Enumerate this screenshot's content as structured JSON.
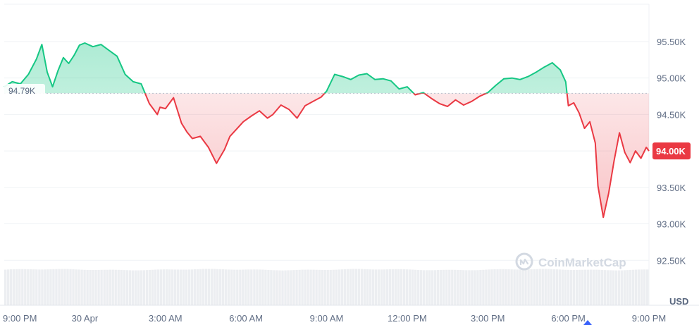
{
  "chart_data": {
    "type": "area",
    "baseline": 94790,
    "baseline_label": "94.79K",
    "current_label": "94.00K",
    "unit": "USD",
    "ylim": [
      92000,
      96000
    ],
    "y_ticks": [
      {
        "value": 92500,
        "label": "92.50K"
      },
      {
        "value": 93000,
        "label": "93.00K"
      },
      {
        "value": 93500,
        "label": "93.50K"
      },
      {
        "value": 94000,
        "label": "94.00K"
      },
      {
        "value": 94500,
        "label": "94.50K"
      },
      {
        "value": 95000,
        "label": "95.00K"
      },
      {
        "value": 95500,
        "label": "95.50K"
      }
    ],
    "x_ticks": [
      {
        "hour": 0,
        "label": "9:00 PM"
      },
      {
        "hour": 3,
        "label": "30 Apr"
      },
      {
        "hour": 6,
        "label": "3:00 AM"
      },
      {
        "hour": 9,
        "label": "6:00 AM"
      },
      {
        "hour": 12,
        "label": "9:00 AM"
      },
      {
        "hour": 15,
        "label": "12:00 PM"
      },
      {
        "hour": 18,
        "label": "3:00 PM"
      },
      {
        "hour": 21,
        "label": "6:00 PM"
      },
      {
        "hour": 24,
        "label": "9:00 PM"
      }
    ],
    "x": [
      0,
      0.3,
      0.6,
      0.9,
      1.2,
      1.4,
      1.6,
      1.8,
      2.0,
      2.2,
      2.4,
      2.6,
      2.8,
      3.0,
      3.3,
      3.6,
      3.9,
      4.2,
      4.5,
      4.8,
      5.1,
      5.4,
      5.7,
      5.8,
      6.0,
      6.3,
      6.6,
      6.8,
      7.0,
      7.3,
      7.6,
      7.9,
      8.2,
      8.4,
      8.6,
      8.9,
      9.2,
      9.5,
      9.8,
      10.0,
      10.3,
      10.6,
      10.9,
      11.2,
      11.5,
      11.8,
      12.0,
      12.3,
      12.6,
      12.9,
      13.2,
      13.5,
      13.8,
      14.1,
      14.4,
      14.7,
      15.0,
      15.3,
      15.6,
      15.9,
      16.2,
      16.5,
      16.8,
      17.1,
      17.4,
      17.7,
      18.0,
      18.3,
      18.6,
      18.9,
      19.2,
      19.5,
      19.8,
      20.1,
      20.4,
      20.7,
      20.9,
      21.0,
      21.2,
      21.4,
      21.6,
      21.8,
      22.0,
      22.1,
      22.3,
      22.5,
      22.7,
      22.9,
      23.1,
      23.3,
      23.5,
      23.7,
      23.9,
      24.0
    ],
    "y": [
      94880,
      94950,
      94920,
      95050,
      95260,
      95460,
      95080,
      94880,
      95100,
      95280,
      95200,
      95310,
      95450,
      95480,
      95430,
      95460,
      95380,
      95300,
      95050,
      94950,
      94920,
      94650,
      94500,
      94600,
      94580,
      94730,
      94380,
      94260,
      94170,
      94200,
      94050,
      93830,
      94020,
      94200,
      94280,
      94400,
      94480,
      94550,
      94450,
      94500,
      94630,
      94570,
      94450,
      94620,
      94680,
      94740,
      94820,
      95050,
      95020,
      94980,
      95040,
      95060,
      94980,
      94990,
      94960,
      94850,
      94880,
      94770,
      94800,
      94720,
      94650,
      94610,
      94700,
      94630,
      94680,
      94750,
      94800,
      94900,
      94990,
      95000,
      94980,
      95020,
      95080,
      95150,
      95210,
      95110,
      94950,
      94620,
      94660,
      94520,
      94310,
      94400,
      94110,
      93520,
      93090,
      93420,
      93860,
      94250,
      93980,
      93840,
      94000,
      93900,
      94050,
      94000
    ],
    "volume_note": ""
  },
  "branding": {
    "watermark_text": "CoinMarketCap",
    "watermark_icon": "coinmarketcap-logo-icon"
  },
  "colors": {
    "up": "#16c784",
    "down": "#ea3943",
    "up_fill_top": "#b8ecd4",
    "down_fill_bottom": "#f8d2d4",
    "grid": "#eff2f5",
    "baseline_dots": "#b8c0cc",
    "volume": "#dfe3e8",
    "current_tag_bg": "#ea3943"
  }
}
